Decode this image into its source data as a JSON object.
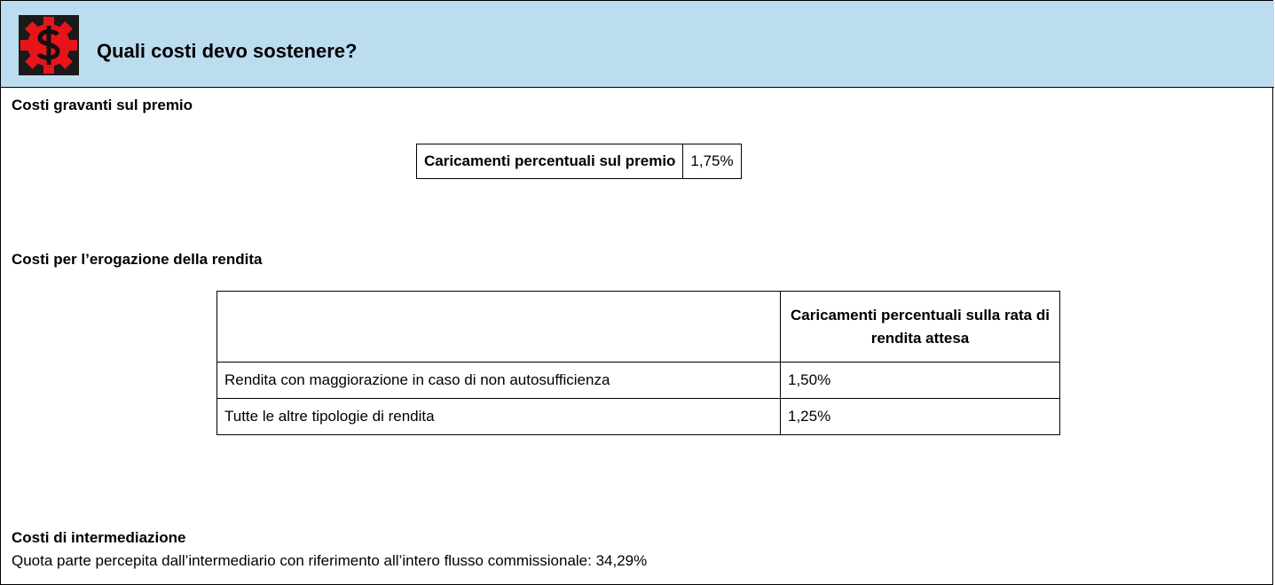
{
  "header": {
    "title": "Quali costi devo sostenere?"
  },
  "sections": [
    {
      "title": "Costi gravanti sul premio",
      "table": {
        "rows": [
          [
            "Caricamenti percentuali sul premio",
            "1,75%"
          ]
        ]
      }
    },
    {
      "title": "Costi per l’erogazione della rendita",
      "table": {
        "header": [
          "",
          "Caricamenti percentuali sulla rata di rendita attesa"
        ],
        "rows": [
          [
            "Rendita con maggiorazione in caso di non autosufficienza",
            "1,50%"
          ],
          [
            "Tutte le altre tipologie di rendita",
            "1,25%"
          ]
        ]
      }
    },
    {
      "title": "Costi di intermediazione",
      "text": "Quota parte percepita dall’intermediario con riferimento all’intero flusso commissionale: 34,29%"
    }
  ]
}
